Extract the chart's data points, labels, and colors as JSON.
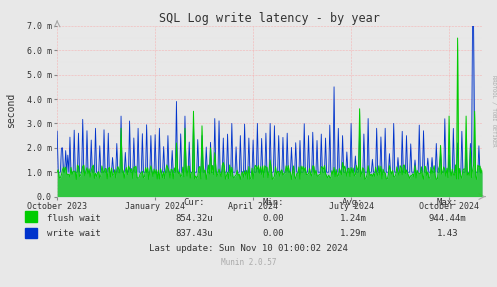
{
  "title": "SQL Log write latency - by year",
  "ylabel": "second",
  "bg_color": "#e8e8e8",
  "plot_bg_color": "#e8e8e8",
  "grid_color_h": "#ff8888",
  "grid_color_v": "#ff8888",
  "grid_color_minor_h": "#dddddd",
  "grid_color_minor_v": "#dddddd",
  "ylim": [
    0.0,
    7.0
  ],
  "yticks": [
    0.0,
    1.0,
    2.0,
    3.0,
    4.0,
    5.0,
    6.0,
    7.0
  ],
  "ytick_labels": [
    "0.0",
    "1.0 m",
    "2.0 m",
    "3.0 m",
    "4.0 m",
    "5.0 m",
    "6.0 m",
    "7.0 m"
  ],
  "xtick_labels": [
    "October 2023",
    "January 2024",
    "April 2024",
    "July 2024",
    "October 2024"
  ],
  "xtick_positions": [
    0.0,
    0.231,
    0.462,
    0.692,
    0.923
  ],
  "flush_color": "#00cc00",
  "write_color": "#0033cc",
  "write_fill_color": "#aabbdd",
  "legend_flush": "flush wait",
  "legend_write": "write wait",
  "cur_flush": "854.32u",
  "cur_write": "837.43u",
  "min_flush": "0.00",
  "min_write": "0.00",
  "avg_flush": "1.24m",
  "avg_write": "1.29m",
  "max_flush": "944.44m",
  "max_write": "1.43",
  "last_update": "Last update: Sun Nov 10 01:00:02 2024",
  "munin_version": "Munin 2.0.57",
  "rrdtool_label": "RRDTOOL / TOBI OETIKER"
}
